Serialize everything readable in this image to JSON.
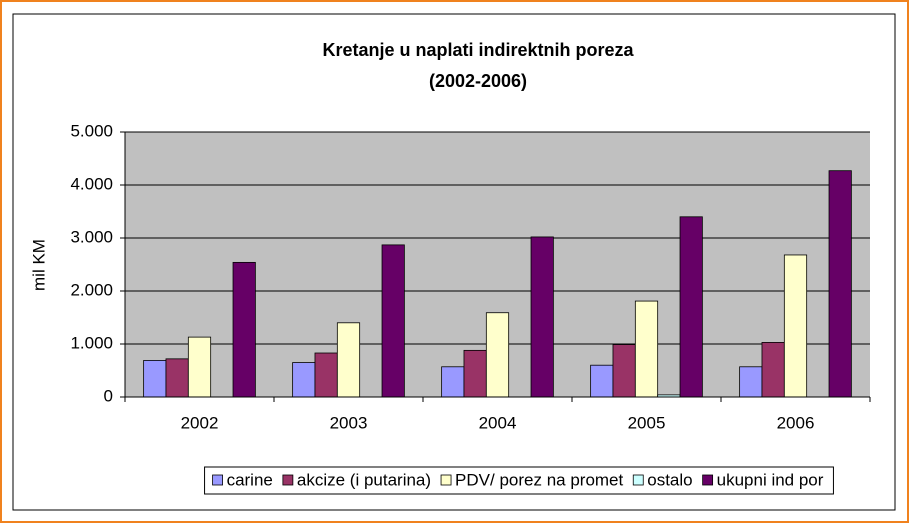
{
  "chart_data": {
    "type": "bar",
    "title": "Kretanje u naplati indirektnih poreza",
    "subtitle": "(2002-2006)",
    "y_label": "mil KM",
    "categories": [
      "2002",
      "2003",
      "2004",
      "2005",
      "2006"
    ],
    "series": [
      {
        "name": "carine",
        "color": "#9999ff",
        "values": [
          690,
          650,
          570,
          600,
          570
        ]
      },
      {
        "name": "akcize (i putarina)",
        "color": "#993366",
        "values": [
          720,
          830,
          880,
          990,
          1030
        ]
      },
      {
        "name": "PDV/ porez na promet",
        "color": "#ffffcc",
        "values": [
          1130,
          1400,
          1590,
          1810,
          2680
        ]
      },
      {
        "name": "ostalo",
        "color": "#ccffff",
        "values": [
          0,
          0,
          0,
          40,
          0
        ]
      },
      {
        "name": "ukupni ind por",
        "color": "#660066",
        "values": [
          2540,
          2870,
          3020,
          3400,
          4270
        ]
      }
    ],
    "ylim": [
      0,
      5000
    ],
    "yticks": [
      0,
      {
        "value": 1000,
        "label": "1.000"
      },
      {
        "value": 2000,
        "label": "2.000"
      },
      {
        "value": 3000,
        "label": "3.000"
      },
      {
        "value": 4000,
        "label": "4.000"
      },
      {
        "value": 5000,
        "label": "5.000"
      }
    ],
    "grid": true,
    "legend": "bottom"
  }
}
